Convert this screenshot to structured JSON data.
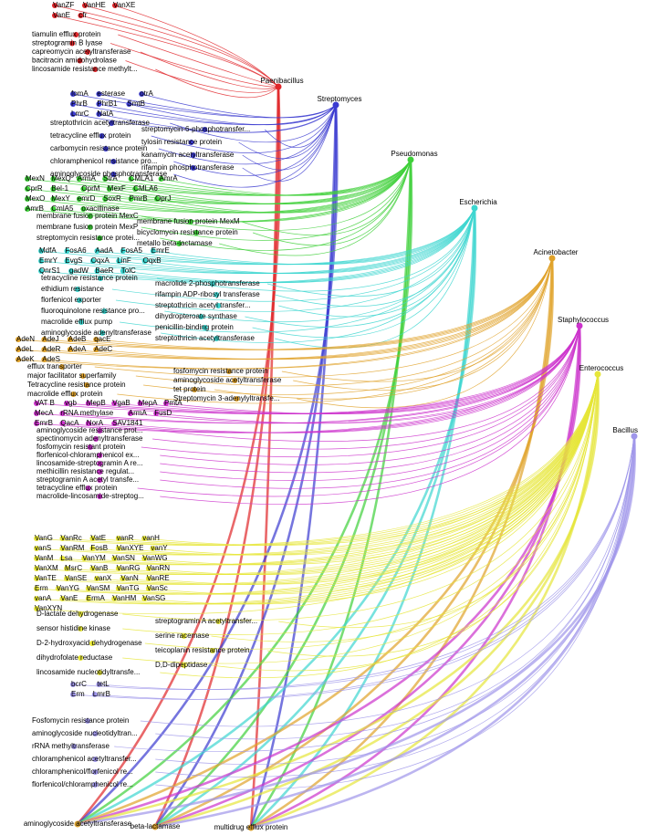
{
  "groups": [
    {
      "genus": "Paenibacillus",
      "short": [
        "VanZF",
        "VanHE",
        "VanXE",
        "VanE",
        "cfr"
      ],
      "long": [
        "tiamulin efflux protein",
        "streptogramin B lyase",
        "capreomycin acetyltransferase",
        "bacitracin amidohydrolase",
        "lincosamide resistance methylt..."
      ]
    },
    {
      "genus": "Streptomyces",
      "short": [
        "fomA",
        "esterase",
        "otrA",
        "PhrB",
        "PhrB1",
        "SmtB",
        "LmrC",
        "NatA"
      ],
      "long": [
        "streptothricin acetyltransferase",
        "streptomycin-6-phosphotransfer...",
        "tetracycline efflux protein",
        "tylosin resistance protein",
        "carbomycin resistance protein",
        "kanamycin acetyltransferase",
        "chloramphenicol resistance pro...",
        "rifampin phosphotransferase",
        "aminoglycoside phosphotransferase"
      ]
    },
    {
      "genus": "Pseudomonas",
      "short": [
        "MexN",
        "MexQ",
        "ArmA",
        "StrA",
        "CMLA1",
        "AmrA",
        "CprR",
        "Bel-1",
        "OprM",
        "MexF",
        "CMLA6",
        "MexO",
        "MexY",
        "emrD",
        "SoxR",
        "PmrB",
        "OprJ",
        "AmrB",
        "CmlA5",
        "oxacillinase"
      ],
      "long": [
        "membrane fusion protein MexC",
        "membrane fusion protein MexM",
        "membrane fusion protein MexP",
        "bicyclomycin resistance protein",
        "streptomycin resistance protei...",
        "metallo beta-lactamase"
      ]
    },
    {
      "genus": "Escherichia",
      "short": [
        "MdfA",
        "FosA6",
        "AadA",
        "FosA5",
        "EmrE",
        "EmrY",
        "EvgS",
        "OqxA",
        "LinF",
        "OqxB",
        "QnrS1",
        "gadW",
        "BaeR",
        "TolC"
      ],
      "long": [
        "tetracycline resistance protein",
        "macrolide 2-phosphotransferase",
        "ethidium resistance",
        "rifampin ADP-ribosyl transferase",
        "florfenicol exporter",
        "streptothricin acetyl transfer...",
        "fluoroquinolone resistance pro...",
        "dihydropteroate synthase",
        "macrolide efflux pump",
        "penicillin-binding protein",
        "aminoglycoside adenyltransferase",
        "streptothricin acetyltransferase"
      ]
    },
    {
      "genus": "Acinetobacter",
      "short": [
        "AdeN",
        "AdeJ",
        "AdeB",
        "qacE",
        "AdeL",
        "AdeR",
        "AdeA",
        "AdeC",
        "AdeK",
        "AdeS"
      ],
      "long": [
        "efflux transporter",
        "fosfomycin resistance protein",
        "major facilitator superfamily",
        "aminoglycoside acetyltransferase",
        "Tetracycline resistance protein",
        "tet protein",
        "macrolide efflux protein",
        "Streptomycin 3-adenylyltransfe..."
      ]
    },
    {
      "genus": "Staphylococcus",
      "short": [
        "VAT B",
        "vgb",
        "MepB",
        "VgaB",
        "MepA",
        "PmtA",
        "MecA",
        "rRNA methylase",
        "ArmA",
        "FusD",
        "EmrB",
        "QacA",
        "NorA",
        "SAV1841"
      ],
      "long": [
        "aminoglycoside resistance prot...",
        "spectinomycin adenyltransferase",
        "fosfomycin resistant protein",
        "florfenicol-chloramphenicol ex...",
        "lincosamide-streptogramin A re...",
        "methicillin resistance regulat...",
        "streptogramin A acetyl transfe...",
        "tetracycline efflux protein",
        "macrolide-lincosamide-streptog..."
      ]
    },
    {
      "genus": "Enterococcus",
      "short": [
        "VanG",
        "VanRc",
        "VatE",
        "vanR",
        "vanH",
        "vanS",
        "VanRM",
        "FosB",
        "VanXYE",
        "vanY",
        "VanM",
        "Lsa",
        "VanYM",
        "VanSN",
        "VanWG",
        "VanXM",
        "MsrC",
        "VanB",
        "VanRG",
        "VanRN",
        "VanTE",
        "VanSE",
        "vanX",
        "VanN",
        "VanRE",
        "Erm",
        "VanYG",
        "VanSM",
        "VanTG",
        "VanSc",
        "vanA",
        "VanE",
        "ErmA",
        "VanHM",
        "VanSG",
        "VanXYN"
      ],
      "long": [
        "D-lactate dehydrogenase",
        "streptogramin A acetyltransfer...",
        "sensor histidine kinase",
        "serine racemase",
        "D-2-hydroxyacid dehydrogenase",
        "teicoplanin resistance protein",
        "dihydrofolate reductase",
        "D,D-dipeptidase",
        "lincosamide nucleotidyltransfe..."
      ]
    },
    {
      "genus": "Bacillus",
      "short": [
        "bcrC",
        "tetL",
        "Erm",
        "LmrB"
      ],
      "long": [
        "Fosfomycin resistance protein",
        "aminoglycoside nucleotidyltran...",
        "rRNA methyltransferase",
        "chloramphenicol acetyltransfer...",
        "chloramphenicol/florfenicol re...",
        "florfenicol/chloramphenicol re..."
      ]
    }
  ],
  "shared": [
    "aminoglycoside acetyltransferase",
    "beta-lactamase",
    "multidrug efflux protein"
  ]
}
